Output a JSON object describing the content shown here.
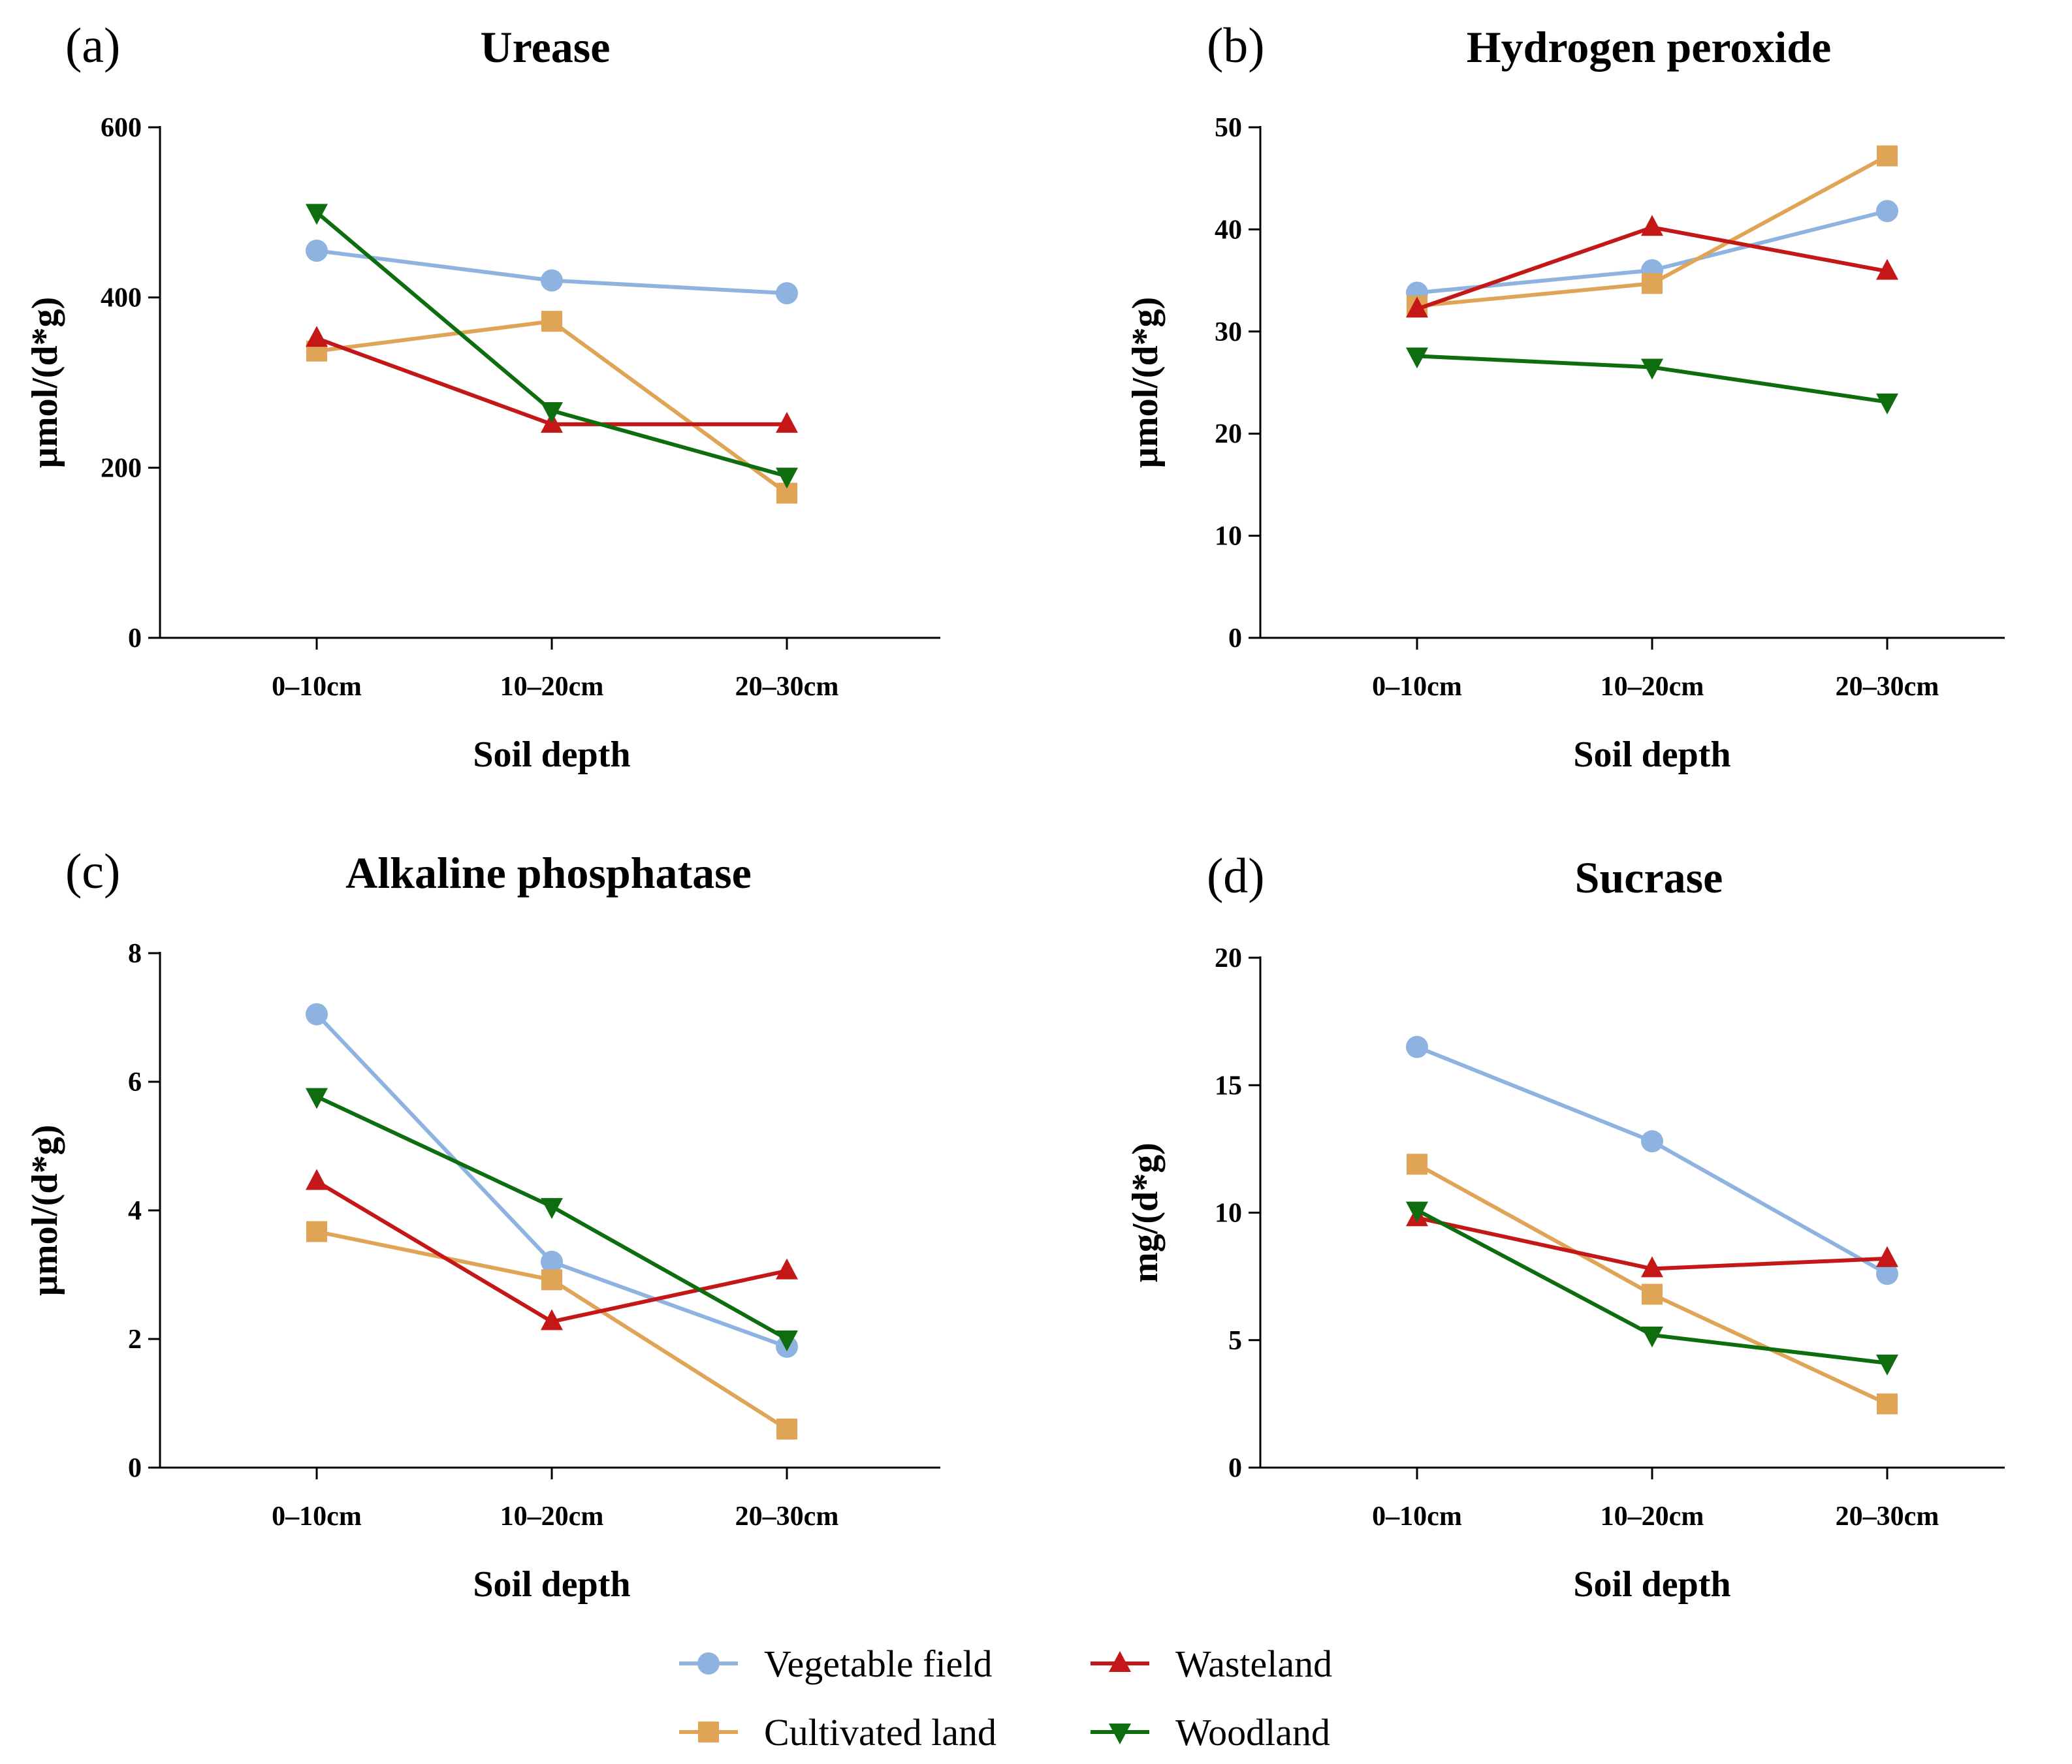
{
  "legend": [
    {
      "name": "Vegetable field",
      "color": "#8fb3e0",
      "marker": "circle"
    },
    {
      "name": "Cultivated land",
      "color": "#e0a456",
      "marker": "square"
    },
    {
      "name": "Wasteland",
      "color": "#c41818",
      "marker": "triangle-up"
    },
    {
      "name": "Woodland",
      "color": "#0e6d0e",
      "marker": "triangle-down"
    }
  ],
  "chart_data": [
    {
      "type": "line",
      "panel": "(a)",
      "title": "Urease",
      "xlabel": "Soil depth",
      "ylabel": "µmol/(d*g)",
      "categories": [
        "0–10cm",
        "10–20cm",
        "20–30cm"
      ],
      "ylim": [
        0,
        600
      ],
      "yticks": [
        0,
        200,
        400,
        600
      ],
      "series": [
        {
          "name": "Vegetable field",
          "values": [
            455,
            420,
            405
          ]
        },
        {
          "name": "Cultivated land",
          "values": [
            337,
            372,
            170
          ]
        },
        {
          "name": "Wasteland",
          "values": [
            352,
            251,
            251
          ]
        },
        {
          "name": "Woodland",
          "values": [
            500,
            267,
            190
          ]
        }
      ]
    },
    {
      "type": "line",
      "panel": "(b)",
      "title": "Hydrogen peroxide",
      "xlabel": "Soil depth",
      "ylabel": "µmol/(d*g)",
      "categories": [
        "0–10cm",
        "10–20cm",
        "20–30cm"
      ],
      "ylim": [
        0,
        50
      ],
      "yticks": [
        0,
        10,
        20,
        30,
        40,
        50
      ],
      "series": [
        {
          "name": "Vegetable field",
          "values": [
            33.8,
            36.0,
            41.8
          ]
        },
        {
          "name": "Cultivated land",
          "values": [
            32.5,
            34.7,
            47.2
          ]
        },
        {
          "name": "Wasteland",
          "values": [
            32.2,
            40.2,
            35.9
          ]
        },
        {
          "name": "Woodland",
          "values": [
            27.6,
            26.5,
            23.1
          ]
        }
      ]
    },
    {
      "type": "line",
      "panel": "(c)",
      "title": "Alkaline phosphatase",
      "xlabel": "Soil depth",
      "ylabel": "µmol/(d*g)",
      "categories": [
        "0–10cm",
        "10–20cm",
        "20–30cm"
      ],
      "ylim": [
        0,
        8
      ],
      "yticks": [
        0,
        2,
        4,
        6,
        8
      ],
      "series": [
        {
          "name": "Vegetable field",
          "values": [
            7.05,
            3.2,
            1.88
          ]
        },
        {
          "name": "Cultivated land",
          "values": [
            3.67,
            2.92,
            0.6
          ]
        },
        {
          "name": "Wasteland",
          "values": [
            4.45,
            2.27,
            3.06
          ]
        },
        {
          "name": "Woodland",
          "values": [
            5.77,
            4.06,
            2.0
          ]
        }
      ]
    },
    {
      "type": "line",
      "panel": "(d)",
      "title": "Sucrase",
      "xlabel": "Soil depth",
      "ylabel": "mg/(d*g)",
      "categories": [
        "0–10cm",
        "10–20cm",
        "20–30cm"
      ],
      "ylim": [
        0,
        20
      ],
      "yticks": [
        0,
        5,
        10,
        15,
        20
      ],
      "series": [
        {
          "name": "Vegetable field",
          "values": [
            16.5,
            12.8,
            7.6
          ]
        },
        {
          "name": "Cultivated land",
          "values": [
            11.9,
            6.8,
            2.5
          ]
        },
        {
          "name": "Wasteland",
          "values": [
            9.8,
            7.8,
            8.2
          ]
        },
        {
          "name": "Woodland",
          "values": [
            10.1,
            5.2,
            4.1
          ]
        }
      ]
    }
  ]
}
